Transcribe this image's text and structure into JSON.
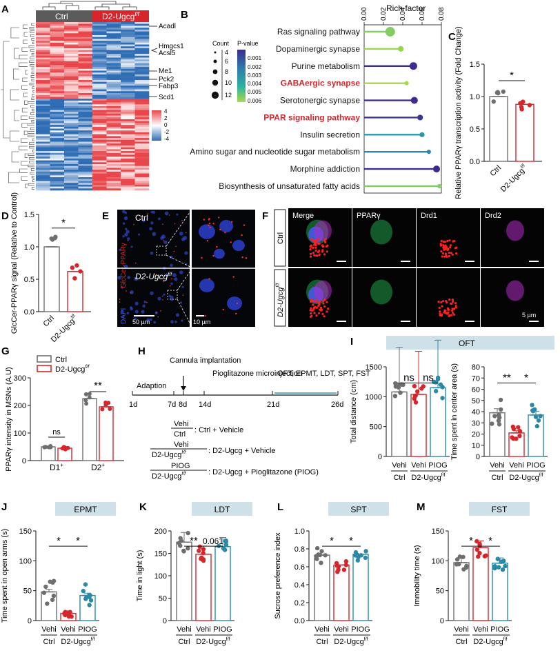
{
  "figure": {
    "panel_letters": [
      "A",
      "B",
      "C",
      "D",
      "E",
      "F",
      "G",
      "H",
      "I",
      "J",
      "K",
      "L",
      "M"
    ]
  },
  "panelA": {
    "group_ctrl": "Ctrl",
    "group_d2": "D2-Ugcg",
    "group_d2_sup": "f/f",
    "genes": [
      "Acadl",
      "Hmgcs1",
      "Acsl5",
      "Me1",
      "Pck2",
      "Fabp3",
      "Scd1"
    ],
    "scale_labels": [
      "4",
      "2",
      "0",
      "-2",
      "-4"
    ],
    "colors": {
      "high": "#e8464b",
      "mid": "#ffffff",
      "low": "#2f6db5",
      "ctrl_bar": "#5b5b5b",
      "d2_bar": "#d7262b"
    }
  },
  "panelB": {
    "axis_title": "Rich factor",
    "ticks": [
      "0.00",
      "0.02",
      "0.04",
      "0.06",
      "0.08"
    ],
    "count_title": "Count",
    "count_values": [
      "4",
      "6",
      "8",
      "10",
      "12"
    ],
    "pvalue_title": "P-value",
    "pvalue_ticks": [
      "0.001",
      "0.002",
      "0.003",
      "0.004",
      "0.005",
      "0.006"
    ],
    "chart_data": {
      "type": "lollipop",
      "pathways": [
        "Ras signaling pathway",
        "Dopaminergic synapse",
        "Purine metabolism",
        "GABAergic synapse",
        "Serotonergic synapse",
        "PPAR signaling pathway",
        "Insulin secretion",
        "Amino sugar and nucleotide sugar metabolism",
        "Morphine addiction",
        "Biosynthesis of unsaturated fatty acids"
      ],
      "rich_factor": [
        0.027,
        0.038,
        0.051,
        0.044,
        0.052,
        0.058,
        0.06,
        0.067,
        0.075,
        0.078
      ],
      "count": [
        12,
        6,
        9,
        4,
        8,
        6,
        5,
        4,
        8,
        4
      ],
      "pvalue": [
        0.0055,
        0.0058,
        0.001,
        0.006,
        0.001,
        0.0012,
        0.0035,
        0.003,
        0.001,
        0.0055
      ],
      "highlight": [
        false,
        false,
        false,
        true,
        false,
        true,
        false,
        false,
        false,
        false
      ],
      "xlim": [
        0,
        0.08
      ]
    }
  },
  "panelC": {
    "ylabel": "Relative PPARγ transcription activity (Fold Change)",
    "ticks": [
      "0.0",
      "0.5",
      "1.0",
      "1.5"
    ],
    "sig": "*",
    "xlabels": [
      "Ctrl",
      "D2-Ugcg"
    ],
    "chart_data": {
      "type": "bar",
      "categories": [
        "Ctrl",
        "D2-Ugcg f/f"
      ],
      "values": [
        1.0,
        0.88
      ],
      "ylim": [
        0,
        1.5
      ]
    }
  },
  "panelD": {
    "ylabel": "GlcCer-PPARγ signal (Relative to Control)",
    "ticks": [
      "0.0",
      "0.5",
      "1.0",
      "1.5"
    ],
    "sig": "*",
    "xlabels": [
      "Ctrl",
      "D2-Ugcg"
    ],
    "chart_data": {
      "type": "bar",
      "categories": [
        "Ctrl",
        "D2-Ugcg f/f"
      ],
      "values": [
        1.0,
        0.62
      ],
      "ylim": [
        0,
        1.5
      ]
    }
  },
  "panelE": {
    "ctrl_label": "Ctrl",
    "d2_label": "D2-Ugcg",
    "side_label_dapi": "DAPI",
    "side_label_red": "GlcCer-PPARγ",
    "scale1": "50 µm",
    "scale2": "10 µm"
  },
  "panelF": {
    "cols": [
      "Merge",
      "PPARγ",
      "Drd1",
      "Drd2"
    ],
    "rows": [
      "Ctrl",
      "D2-Ugcg"
    ],
    "scale": "5 µm"
  },
  "panelG": {
    "legend": [
      "Ctrl",
      "D2-Ugcg"
    ],
    "ylabel": "PPARγ intensity in MSNs (A.U)",
    "ticks": [
      "0",
      "100",
      "200",
      "300"
    ],
    "groups": [
      "D1",
      "D2"
    ],
    "sig": [
      "ns",
      "**"
    ],
    "chart_data": {
      "type": "bar",
      "categories": [
        "D1+",
        "D2+"
      ],
      "series": [
        {
          "name": "Ctrl",
          "values": [
            50,
            225
          ]
        },
        {
          "name": "D2-Ugcg f/f",
          "values": [
            45,
            195
          ]
        }
      ],
      "ylim": [
        0,
        300
      ]
    }
  },
  "panelH": {
    "steps": [
      "Adaption",
      "Cannula implantation",
      "Pioglitazone microinjection",
      "OFT, EPMT, LDT, SPT, FST"
    ],
    "days": [
      "1d",
      "7d",
      "8d",
      "14d",
      "21d",
      "26d"
    ],
    "legend": [
      {
        "top": "Vehi",
        "bottom": "Ctrl",
        "text": ": Ctrl + Vehicle"
      },
      {
        "top": "Vehi",
        "bottom": "D2-Ugcg",
        "text": ": D2-Ugcg + Vehicle"
      },
      {
        "top": "PIOG",
        "bottom": "D2-Ugcg",
        "text": ": D2-Ugcg + Pioglitazone (PIOG)"
      }
    ]
  },
  "panelI": {
    "banner": "OFT",
    "left": {
      "ylabel": "Total distance (cm)",
      "ticks": [
        "0",
        "500",
        "1000",
        "1500"
      ],
      "sig": [
        "ns",
        "ns"
      ],
      "chart_data": {
        "type": "bar",
        "categories": [
          "Ctrl Vehi",
          "D2-Ugcg Vehi",
          "D2-Ugcg PIOG"
        ],
        "values": [
          1080,
          1040,
          1150
        ],
        "ylim": [
          0,
          1500
        ]
      }
    },
    "right": {
      "ylabel": "Time spent in center area (s)",
      "ticks": [
        "0",
        "10",
        "20",
        "30",
        "40",
        "50",
        "60",
        "70",
        "80"
      ],
      "sig": [
        "**",
        "*"
      ],
      "chart_data": {
        "type": "bar",
        "categories": [
          "Ctrl Vehi",
          "D2-Ugcg Vehi",
          "D2-Ugcg PIOG"
        ],
        "values": [
          39,
          21,
          37
        ],
        "ylim": [
          0,
          80
        ]
      }
    }
  },
  "panelJ": {
    "banner": "EPMT",
    "ylabel": "Time spent in open arms (s)",
    "ticks": [
      "0",
      "50",
      "100",
      "150"
    ],
    "sig": [
      "*",
      "*"
    ],
    "chart_data": {
      "type": "bar",
      "categories": [
        "Ctrl Vehi",
        "D2-Ugcg Vehi",
        "D2-Ugcg PIOG"
      ],
      "values": [
        48,
        12,
        42
      ],
      "ylim": [
        0,
        150
      ]
    }
  },
  "panelK": {
    "banner": "LDT",
    "ylabel": "Time in light (s)",
    "ticks": [
      "0",
      "50",
      "100",
      "150",
      "200"
    ],
    "sig": [
      "**",
      "0.061"
    ],
    "chart_data": {
      "type": "bar",
      "categories": [
        "Ctrl Vehi",
        "D2-Ugcg Vehi",
        "D2-Ugcg PIOG"
      ],
      "values": [
        175,
        148,
        165
      ],
      "ylim": [
        0,
        200
      ]
    }
  },
  "panelL": {
    "banner": "SPT",
    "ylabel": "Sucrose preference index",
    "ticks": [
      "0.0",
      "0.2",
      "0.4",
      "0.6",
      "0.8",
      "1.0"
    ],
    "sig": [
      "*",
      "*"
    ],
    "chart_data": {
      "type": "bar",
      "categories": [
        "Ctrl Vehi",
        "D2-Ugcg Vehi",
        "D2-Ugcg PIOG"
      ],
      "values": [
        0.73,
        0.62,
        0.74
      ],
      "ylim": [
        0,
        1.0
      ]
    }
  },
  "panelM": {
    "banner": "FST",
    "ylabel": "Immobility time (s)",
    "ticks": [
      "0",
      "50",
      "100",
      "150"
    ],
    "sig": [
      "*",
      "*"
    ],
    "chart_data": {
      "type": "bar",
      "categories": [
        "Ctrl Vehi",
        "D2-Ugcg Vehi",
        "D2-Ugcg PIOG"
      ],
      "values": [
        97,
        122,
        96
      ],
      "ylim": [
        0,
        150
      ]
    }
  },
  "group_labels": {
    "vehi": "Vehi",
    "piog": "PIOG",
    "ctrl": "Ctrl",
    "d2": "D2-Ugcg",
    "ff": "f/f"
  }
}
